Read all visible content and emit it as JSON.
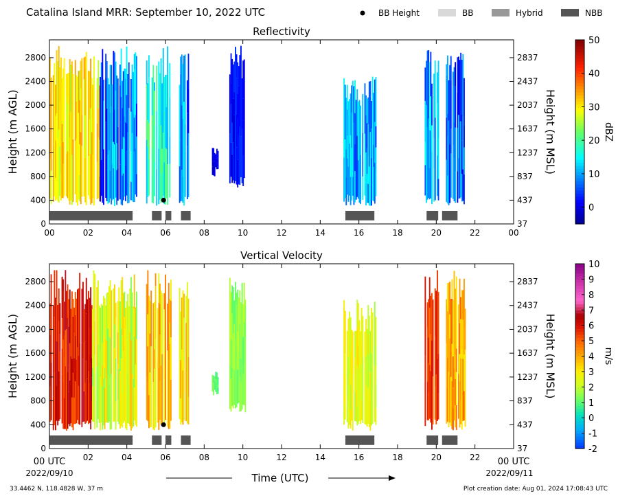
{
  "header": {
    "title": "Catalina Island MRR:  September 10, 2022 UTC",
    "legend": [
      {
        "label": "BB Height",
        "kind": "dot",
        "color": "#000000"
      },
      {
        "label": "BB",
        "kind": "box",
        "color": "#d9d9d9"
      },
      {
        "label": "Hybrid",
        "kind": "box",
        "color": "#999999"
      },
      {
        "label": "NBB",
        "kind": "box",
        "color": "#555555"
      }
    ]
  },
  "footer": {
    "location": "33.4462 N, 118.4828 W, 37 m",
    "creation": "Plot creation date: Aug 01, 2024 17:08:43 UTC",
    "xlabel": "Time (UTC)",
    "start_label_time": "00 UTC",
    "start_label_date": "2022/09/10",
    "end_label_time": "00 UTC",
    "end_label_date": "2022/09/11"
  },
  "chart_data": [
    {
      "type": "heatmap",
      "title": "Reflectivity",
      "ylabel": "Height (m AGL)",
      "ylabel_right": "Height (m MSL)",
      "xlim": [
        0,
        24
      ],
      "ylim": [
        0,
        3100
      ],
      "x_ticks": [
        "00",
        "02",
        "04",
        "06",
        "08",
        "10",
        "12",
        "14",
        "16",
        "18",
        "20",
        "22",
        "00"
      ],
      "y_ticks": [
        0,
        400,
        800,
        1200,
        1600,
        2000,
        2400,
        2800
      ],
      "y_ticks_right": [
        "37",
        "437",
        "837",
        "1237",
        "1637",
        "2037",
        "2437",
        "2837"
      ],
      "colorbar": {
        "label": "dBZ",
        "min": -5,
        "max": 50,
        "ticks": [
          "0",
          "10",
          "20",
          "30",
          "40",
          "50"
        ],
        "tick_values": [
          0,
          10,
          20,
          30,
          40,
          50
        ],
        "colormap": "jet"
      },
      "echo_regions": [
        {
          "start": 0.0,
          "end": 2.6,
          "top": 3000,
          "base": 300,
          "value": 30,
          "var": 5
        },
        {
          "start": 2.6,
          "end": 4.5,
          "top": 3000,
          "base": 300,
          "value": 8,
          "var": 8
        },
        {
          "start": 5.0,
          "end": 6.3,
          "top": 3000,
          "base": 300,
          "value": 17,
          "var": 6
        },
        {
          "start": 6.7,
          "end": 7.2,
          "top": 2950,
          "base": 300,
          "value": 9,
          "var": 7
        },
        {
          "start": 8.4,
          "end": 8.7,
          "top": 1300,
          "base": 800,
          "value": 0,
          "var": 2
        },
        {
          "start": 9.3,
          "end": 10.1,
          "top": 3000,
          "base": 600,
          "value": 2,
          "var": 3
        },
        {
          "start": 15.2,
          "end": 16.9,
          "top": 2500,
          "base": 300,
          "value": 10,
          "var": 6
        },
        {
          "start": 19.4,
          "end": 20.1,
          "top": 3000,
          "base": 300,
          "value": 10,
          "var": 7
        },
        {
          "start": 20.5,
          "end": 21.5,
          "top": 3000,
          "base": 300,
          "value": 6,
          "var": 7
        }
      ],
      "bb_height": [
        {
          "time": 5.9,
          "height": 400
        }
      ],
      "bb_type_bars": [
        {
          "start": 0.0,
          "end": 4.3,
          "type": "NBB"
        },
        {
          "start": 5.3,
          "end": 5.8,
          "type": "NBB"
        },
        {
          "start": 6.0,
          "end": 6.3,
          "type": "NBB"
        },
        {
          "start": 6.8,
          "end": 7.3,
          "type": "NBB"
        },
        {
          "start": 15.3,
          "end": 16.8,
          "type": "NBB"
        },
        {
          "start": 19.5,
          "end": 20.1,
          "type": "NBB"
        },
        {
          "start": 20.3,
          "end": 21.1,
          "type": "NBB"
        }
      ]
    },
    {
      "type": "heatmap",
      "title": "Vertical Velocity",
      "ylabel": "Height (m AGL)",
      "ylabel_right": "Height (m MSL)",
      "xlim": [
        0,
        24
      ],
      "ylim": [
        0,
        3100
      ],
      "x_ticks": [
        "",
        "02",
        "04",
        "06",
        "08",
        "10",
        "12",
        "14",
        "16",
        "18",
        "20",
        "22",
        ""
      ],
      "y_ticks": [
        0,
        400,
        800,
        1200,
        1600,
        2000,
        2400,
        2800
      ],
      "y_ticks_right": [
        "37",
        "437",
        "837",
        "1237",
        "1637",
        "2037",
        "2437",
        "2837"
      ],
      "colorbar": {
        "label": "m/s",
        "min": -2,
        "max": 10,
        "ticks": [
          "-2",
          "-1",
          "0",
          "1",
          "2",
          "3",
          "4",
          "5",
          "6",
          "7",
          "8",
          "9",
          "10"
        ],
        "tick_values": [
          -2,
          -1,
          0,
          1,
          2,
          3,
          4,
          5,
          6,
          7,
          8,
          9,
          10
        ],
        "colormap": "velocity"
      },
      "echo_regions": [
        {
          "start": 0.0,
          "end": 2.2,
          "top": 3000,
          "base": 300,
          "value": 6,
          "var": 1
        },
        {
          "start": 2.2,
          "end": 4.5,
          "top": 3000,
          "base": 300,
          "value": 2.5,
          "var": 1.3
        },
        {
          "start": 5.0,
          "end": 6.3,
          "top": 3000,
          "base": 300,
          "value": 3.5,
          "var": 1.2
        },
        {
          "start": 6.7,
          "end": 7.2,
          "top": 2950,
          "base": 300,
          "value": 3,
          "var": 1.2
        },
        {
          "start": 8.4,
          "end": 8.7,
          "top": 1300,
          "base": 800,
          "value": 1,
          "var": 0.4
        },
        {
          "start": 9.3,
          "end": 10.1,
          "top": 3000,
          "base": 600,
          "value": 1.5,
          "var": 0.5
        },
        {
          "start": 15.2,
          "end": 16.9,
          "top": 2500,
          "base": 300,
          "value": 2.5,
          "var": 0.8
        },
        {
          "start": 19.4,
          "end": 20.1,
          "top": 3000,
          "base": 300,
          "value": 5.5,
          "var": 0.8
        },
        {
          "start": 20.5,
          "end": 21.5,
          "top": 3000,
          "base": 300,
          "value": 4,
          "var": 1.2
        }
      ],
      "bb_height": [
        {
          "time": 5.9,
          "height": 400
        }
      ],
      "bb_type_bars": [
        {
          "start": 0.0,
          "end": 4.3,
          "type": "NBB"
        },
        {
          "start": 5.3,
          "end": 5.8,
          "type": "NBB"
        },
        {
          "start": 6.0,
          "end": 6.3,
          "type": "NBB"
        },
        {
          "start": 6.8,
          "end": 7.3,
          "type": "NBB"
        },
        {
          "start": 15.3,
          "end": 16.8,
          "type": "NBB"
        },
        {
          "start": 19.5,
          "end": 20.1,
          "type": "NBB"
        },
        {
          "start": 20.3,
          "end": 21.1,
          "type": "NBB"
        }
      ]
    }
  ]
}
